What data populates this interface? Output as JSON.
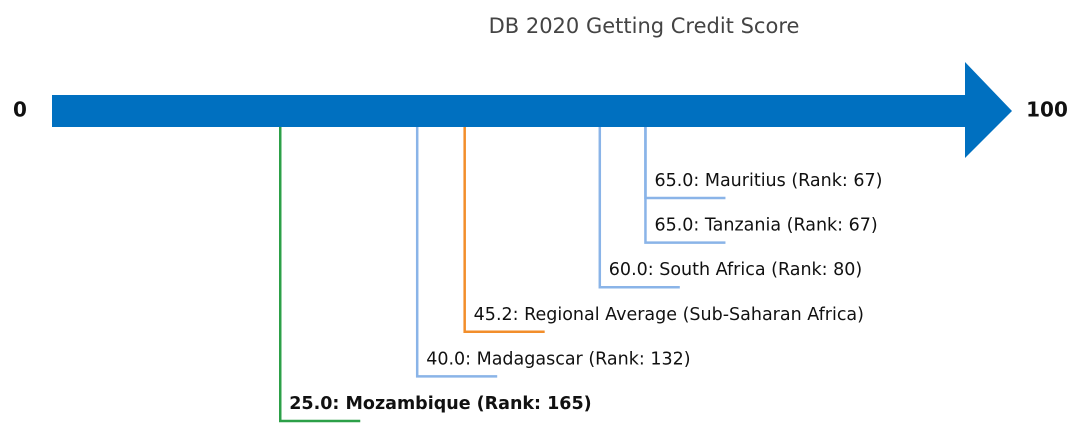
{
  "chart_data": {
    "type": "number-line",
    "title": "DB 2020 Getting Credit Score",
    "values": [
      65,
      65,
      60,
      45.2,
      40,
      25
    ],
    "value_labels": [
      "65.0: Mauritius (Rank: 67)",
      "65.0: Tanzania (Rank: 67)",
      "60.0: South Africa (Rank: 80)",
      "45.2: Regional Average (Sub-Saharan Africa)",
      "40.0: Madagascar (Rank: 132)",
      "25.0: Mozambique (Rank: 165)"
    ],
    "colors": [
      "#8ab4e8",
      "#8ab4e8",
      "#8ab4e8",
      "#f28e2b",
      "#8ab4e8",
      "#2ca048"
    ],
    "bold": [
      false,
      false,
      false,
      false,
      false,
      true
    ],
    "axis_color": "#0070c0",
    "xlim": [
      0,
      100
    ],
    "xticks": [
      0,
      100
    ]
  }
}
